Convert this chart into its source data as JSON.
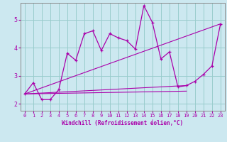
{
  "xlabel": "Windchill (Refroidissement éolien,°C)",
  "background_color": "#cce8f0",
  "line_color": "#aa00aa",
  "grid_color": "#99cccc",
  "xlim": [
    -0.5,
    23.5
  ],
  "ylim": [
    1.75,
    5.6
  ],
  "xticks": [
    0,
    1,
    2,
    3,
    4,
    5,
    6,
    7,
    8,
    9,
    10,
    11,
    12,
    13,
    14,
    15,
    16,
    17,
    18,
    19,
    20,
    21,
    22,
    23
  ],
  "yticks": [
    2,
    3,
    4,
    5
  ],
  "line1_x": [
    0,
    1,
    2,
    3,
    4,
    5,
    6,
    7,
    8,
    9,
    10,
    11,
    12,
    13,
    14,
    15,
    16,
    17,
    18,
    19,
    20,
    21,
    22,
    23
  ],
  "line1_y": [
    2.35,
    2.75,
    2.15,
    2.15,
    2.5,
    3.8,
    3.55,
    4.5,
    4.6,
    3.9,
    4.5,
    4.35,
    4.25,
    3.95,
    5.5,
    4.9,
    3.6,
    3.85,
    2.6,
    2.65,
    2.8,
    3.05,
    3.35,
    4.85
  ],
  "line2_x": [
    0,
    23
  ],
  "line2_y": [
    2.35,
    4.85
  ],
  "line3_x": [
    0,
    19
  ],
  "line3_y": [
    2.35,
    2.65
  ],
  "line4_x": [
    0,
    19
  ],
  "line4_y": [
    2.35,
    2.45
  ]
}
